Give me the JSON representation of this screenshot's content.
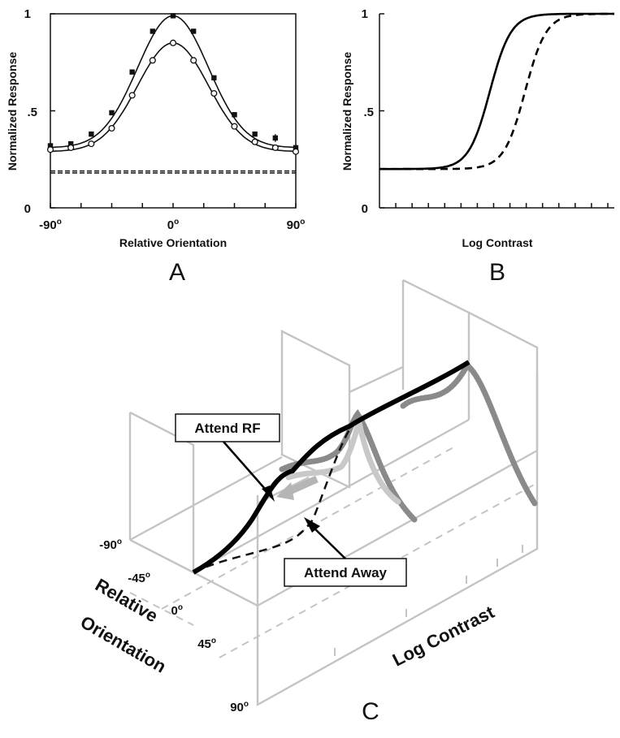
{
  "chart_data": [
    {
      "panel": "A",
      "type": "line",
      "xlabel": "Relative Orientation",
      "ylabel": "Normalized Response",
      "xlim": [
        -90,
        90
      ],
      "ylim": [
        0,
        1
      ],
      "xticks": [
        "-90o",
        "0o",
        "90o"
      ],
      "yticks": [
        "0",
        ".5",
        "1"
      ],
      "x": [
        -90,
        -75,
        -60,
        -45,
        -30,
        -15,
        0,
        15,
        30,
        45,
        60,
        75,
        90
      ],
      "series": [
        {
          "marker": "filled-square",
          "values": [
            0.32,
            0.33,
            0.38,
            0.49,
            0.7,
            0.91,
            0.99,
            0.91,
            0.67,
            0.48,
            0.38,
            0.36,
            0.31
          ],
          "errors": [
            0.01,
            0.01,
            0.01,
            0.01,
            0.01,
            0.01,
            0.01,
            0.01,
            0.01,
            0.01,
            0.01,
            0.02,
            0.01
          ]
        },
        {
          "marker": "open-circle",
          "values": [
            0.3,
            0.31,
            0.33,
            0.41,
            0.58,
            0.76,
            0.85,
            0.76,
            0.59,
            0.42,
            0.34,
            0.31,
            0.29
          ]
        }
      ],
      "baselines": [
        0.19,
        0.18
      ]
    },
    {
      "panel": "B",
      "type": "line",
      "xlabel": "Log Contrast",
      "ylabel": "Normalized Response",
      "ylim": [
        0,
        1
      ],
      "yticks": [
        "0",
        ".5",
        "1"
      ],
      "series": [
        {
          "style": "solid",
          "baseline": 0.2,
          "max": 1.0,
          "midpoint": 0.47,
          "slope": 0.045
        },
        {
          "style": "dashed",
          "baseline": 0.2,
          "max": 1.0,
          "midpoint": 0.62,
          "slope": 0.045
        }
      ]
    },
    {
      "panel": "C",
      "type": "line",
      "xlabel": "Log Contrast",
      "ylabel": "Relative Orientation",
      "yticks": [
        "-90o",
        "-45o",
        "0o",
        "45o",
        "90o"
      ],
      "annotations": [
        "Attend RF",
        "Attend Away"
      ]
    }
  ],
  "panel_labels": [
    "A",
    "B",
    "C"
  ]
}
